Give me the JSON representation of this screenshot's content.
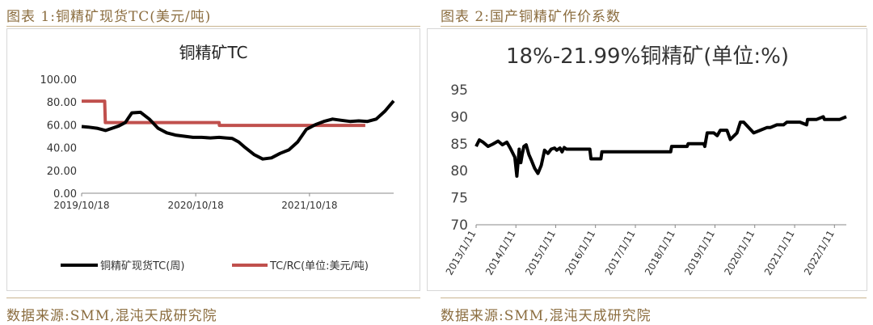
{
  "left": {
    "caption": "图表 1:铜精矿现货TC(美元/吨)",
    "source": "数据来源:SMM,混沌天成研究院"
  },
  "right": {
    "caption": "图表 2:国产铜精矿作价系数",
    "source": "数据来源:SMM,混沌天成研究院"
  },
  "colors": {
    "caption": "#8b6d3f",
    "series_black": "#000000",
    "series_red": "#c0504d"
  },
  "chart_data": [
    {
      "type": "line",
      "title": "铜精矿TC",
      "xlabel": "",
      "ylabel": "",
      "ylim": [
        0,
        100
      ],
      "yticks": [
        "0.00",
        "20.00",
        "40.00",
        "60.00",
        "80.00",
        "100.00"
      ],
      "xticks": [
        "2019/10/18",
        "2020/10/18",
        "2021/10/18"
      ],
      "x_range": [
        "2019-10-18",
        "2022-07-15"
      ],
      "legend_position": "bottom",
      "grid": false,
      "series": [
        {
          "name": "铜精矿现货TC(周)",
          "color": "#000000",
          "x": [
            "2019-10-18",
            "2019-11-08",
            "2019-12-06",
            "2020-01-03",
            "2020-01-24",
            "2020-02-14",
            "2020-03-06",
            "2020-03-27",
            "2020-04-24",
            "2020-05-22",
            "2020-06-19",
            "2020-07-17",
            "2020-08-14",
            "2020-09-11",
            "2020-10-09",
            "2020-11-06",
            "2020-12-04",
            "2021-01-01",
            "2021-01-22",
            "2021-02-12",
            "2021-03-05",
            "2021-03-26",
            "2021-04-23",
            "2021-05-21",
            "2021-06-18",
            "2021-07-16",
            "2021-08-13",
            "2021-09-10",
            "2021-10-08",
            "2021-11-05",
            "2021-12-03",
            "2021-12-31",
            "2022-01-28",
            "2022-02-25",
            "2022-03-25",
            "2022-04-22",
            "2022-05-20",
            "2022-06-17",
            "2022-07-15"
          ],
          "values": [
            58.5,
            58,
            57,
            55,
            57,
            59,
            62,
            70.5,
            71,
            65,
            57,
            53,
            51,
            50,
            49,
            49,
            48.5,
            49,
            48.5,
            48,
            45,
            40,
            34,
            30,
            31,
            35,
            38,
            45,
            56,
            60,
            63,
            65,
            64,
            63,
            63.5,
            63,
            65,
            72,
            81
          ]
        },
        {
          "name": "TC/RC(单位:美元/吨)",
          "color": "#c0504d",
          "x": [
            "2019-10-18",
            "2019-12-31",
            "2020-01-02",
            "2021-01-01",
            "2021-01-02",
            "2022-04-15"
          ],
          "values": [
            80.8,
            80.8,
            62,
            62,
            59.5,
            59.5
          ]
        }
      ]
    },
    {
      "type": "line",
      "title": "18%-21.99%铜精矿(单位:%)",
      "xlabel": "",
      "ylabel": "",
      "ylim": [
        70,
        95
      ],
      "yticks": [
        "70",
        "75",
        "80",
        "85",
        "90",
        "95"
      ],
      "xticks": [
        "2013/1/11",
        "2014/1/11",
        "2015/1/11",
        "2016/1/11",
        "2017/1/11",
        "2018/1/11",
        "2019/1/11",
        "2020/1/11",
        "2021/1/11",
        "2022/1/11"
      ],
      "x_range": [
        "2013-01-11",
        "2022-04-30"
      ],
      "legend_position": "none",
      "grid": false,
      "series": [
        {
          "name": "",
          "color": "#000000",
          "x": [
            "2013-01-11",
            "2013-02-10",
            "2013-03-15",
            "2013-05-01",
            "2013-06-10",
            "2013-08-01",
            "2013-09-10",
            "2013-10-20",
            "2013-11-20",
            "2014-01-01",
            "2014-01-20",
            "2014-02-10",
            "2014-02-25",
            "2014-03-10",
            "2014-03-25",
            "2014-04-15",
            "2014-05-10",
            "2014-06-01",
            "2014-07-01",
            "2014-08-01",
            "2014-09-01",
            "2014-10-01",
            "2014-11-01",
            "2014-12-01",
            "2015-01-01",
            "2015-01-20",
            "2015-02-20",
            "2015-03-10",
            "2015-03-30",
            "2015-04-20",
            "2015-06-01",
            "2015-09-01",
            "2015-11-20",
            "2015-12-01",
            "2016-03-01",
            "2016-03-10",
            "2016-06-01",
            "2017-01-01",
            "2017-06-01",
            "2017-12-01",
            "2017-12-10",
            "2018-05-01",
            "2018-05-10",
            "2018-10-01",
            "2018-10-10",
            "2018-11-01",
            "2019-01-01",
            "2019-02-01",
            "2019-03-01",
            "2019-05-01",
            "2019-06-01",
            "2019-08-01",
            "2019-09-01",
            "2019-10-01",
            "2020-01-01",
            "2020-03-01",
            "2020-05-01",
            "2020-06-01",
            "2020-08-01",
            "2020-10-01",
            "2020-11-01",
            "2021-01-01",
            "2021-03-01",
            "2021-05-01",
            "2021-05-10",
            "2021-06-01",
            "2021-08-01",
            "2021-10-01",
            "2021-10-10",
            "2022-03-01",
            "2022-04-30"
          ],
          "values": [
            84.5,
            85.7,
            85.3,
            84.5,
            84.9,
            85.5,
            84.8,
            85.3,
            84.2,
            82.5,
            79,
            84,
            81.5,
            83,
            84.5,
            84.8,
            83,
            82,
            80.5,
            79.5,
            81,
            83.8,
            83.2,
            84,
            84.2,
            83.8,
            84.2,
            83.5,
            84.3,
            84,
            84,
            84,
            84,
            82.2,
            82.2,
            83.5,
            83.5,
            83.5,
            83.5,
            83.5,
            84.5,
            84.5,
            85,
            85,
            84.5,
            87,
            87,
            86.5,
            87.5,
            87.5,
            85.8,
            87,
            89,
            89,
            87,
            87.5,
            88,
            88,
            88.5,
            88.5,
            89,
            89,
            89,
            88.5,
            89.5,
            89.5,
            89.5,
            90,
            89.5,
            89.5,
            90
          ]
        }
      ]
    }
  ]
}
